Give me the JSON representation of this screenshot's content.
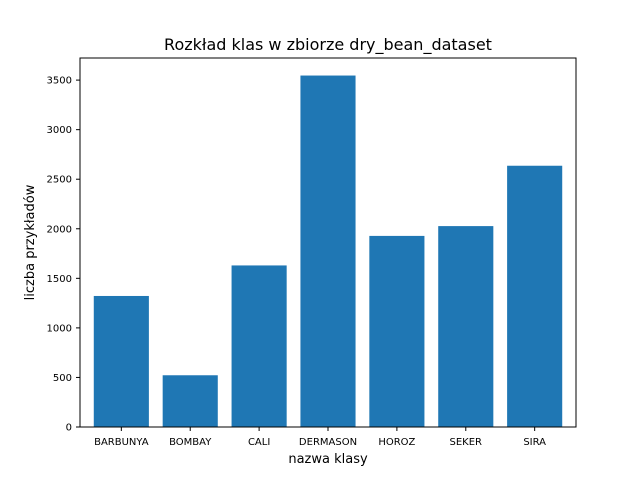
{
  "chart_data": {
    "type": "bar",
    "title": "Rozkład klas w zbiorze dry_bean_dataset",
    "xlabel": "nazwa klasy",
    "ylabel": "liczba przykładów",
    "categories": [
      "BARBUNYA",
      "BOMBAY",
      "CALI",
      "DERMASON",
      "HOROZ",
      "SEKER",
      "SIRA"
    ],
    "values": [
      1322,
      522,
      1630,
      3546,
      1928,
      2027,
      2636
    ],
    "ylim": [
      0,
      3723
    ],
    "yticks": [
      0,
      500,
      1000,
      1500,
      2000,
      2500,
      3000,
      3500
    ],
    "grid": false,
    "bar_color": "#1f77b4"
  }
}
